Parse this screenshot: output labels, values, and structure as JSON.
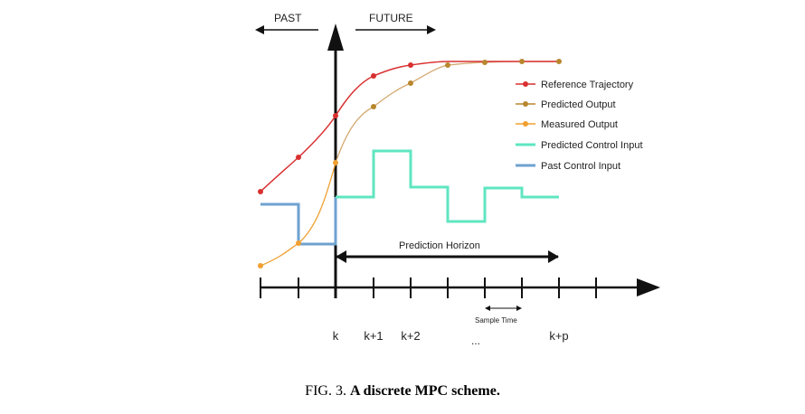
{
  "diagram": {
    "past_label": "PAST",
    "future_label": "FUTURE",
    "horizon_label": "Prediction Horizon",
    "sample_time_label": "Sample Time",
    "ticks": {
      "k": "k",
      "k1": "k+1",
      "k2": "k+2",
      "dots": "...",
      "kp": "k+p"
    },
    "legend": [
      {
        "label": "Reference Trajectory",
        "color": "#d93030",
        "marker": "dot"
      },
      {
        "label": "Predicted Output",
        "color": "#b8862e",
        "marker": "dot"
      },
      {
        "label": "Measured Output",
        "color": "#f0a030",
        "marker": "dot"
      },
      {
        "label": "Predicted Control Input",
        "color": "#5fe6c0",
        "marker": "none"
      },
      {
        "label": "Past Control Input",
        "color": "#6fa2d0",
        "marker": "none"
      }
    ]
  },
  "caption": {
    "fig": "FIG. 3.",
    "title": "A discrete MPC scheme."
  }
}
